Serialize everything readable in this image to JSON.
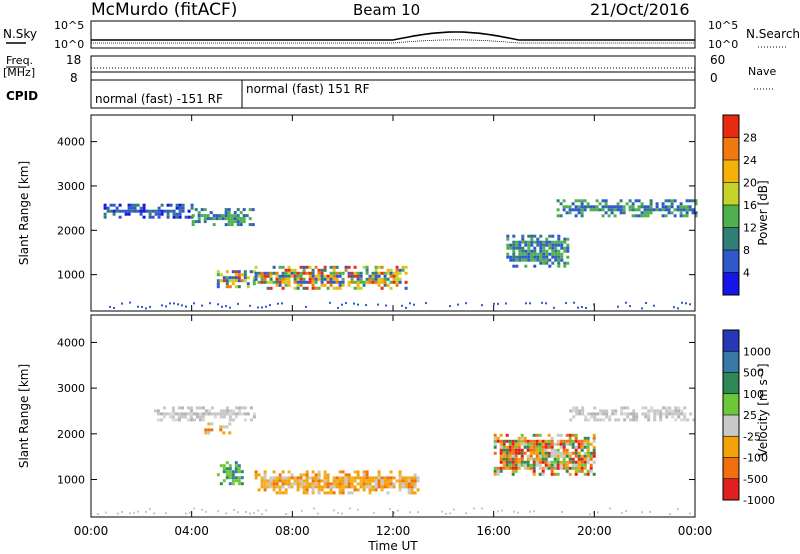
{
  "header": {
    "title_left": "McMurdo (fitACF)",
    "title_center": "Beam 10",
    "title_right": "21/Oct/2016"
  },
  "strip_labels": {
    "nsky": "N.Sky",
    "nsearch": "N.Search",
    "freq": "Freq.",
    "freq_unit": "[MHz]",
    "nave": "Nave",
    "cpid": "CPID",
    "log_high": "10^5",
    "log_low": "10^0",
    "freq_top": "18",
    "freq_bottom": "8",
    "nave_top": "60",
    "nave_bottom": "0"
  },
  "cpid_segments": [
    {
      "label": "normal (fast) -151 RF",
      "start_hour": 0,
      "end_hour": 6.0
    },
    {
      "label": "normal (fast) 151 RF",
      "start_hour": 6.0,
      "end_hour": 24
    }
  ],
  "chart_data": [
    {
      "type": "heatmap",
      "title": "",
      "xlabel": "",
      "ylabel": "Slant Range [km]",
      "xlim": [
        0,
        24
      ],
      "ylim": [
        180,
        4600
      ],
      "y_ticks": [
        "1000",
        "2000",
        "3000",
        "4000"
      ],
      "colorbar": {
        "label": "Power [dB]",
        "ticks": [
          "4",
          "8",
          "12",
          "16",
          "20",
          "24",
          "28"
        ],
        "colors": [
          "#1515e6",
          "#2f58c9",
          "#2f7f77",
          "#4fb04f",
          "#c4d42a",
          "#f5b10a",
          "#f07a10",
          "#e82a10"
        ]
      },
      "echo_regions_hours_km": [
        {
          "t": [
            0.5,
            4.0
          ],
          "r": [
            2300,
            2600
          ],
          "level": "low"
        },
        {
          "t": [
            4.0,
            6.5
          ],
          "r": [
            2150,
            2500
          ],
          "level": "mid"
        },
        {
          "t": [
            5.0,
            6.5
          ],
          "r": [
            700,
            1100
          ],
          "level": "high"
        },
        {
          "t": [
            6.5,
            12.5
          ],
          "r": [
            700,
            1200
          ],
          "level": "high"
        },
        {
          "t": [
            16.5,
            19.0
          ],
          "r": [
            1200,
            1900
          ],
          "level": "mid"
        },
        {
          "t": [
            18.5,
            24.0
          ],
          "r": [
            2300,
            2700
          ],
          "level": "mid"
        }
      ]
    },
    {
      "type": "heatmap",
      "title": "",
      "xlabel": "Time UT",
      "ylabel": "Slant Range [km]",
      "xlim": [
        0,
        24
      ],
      "ylim": [
        180,
        4600
      ],
      "x_ticks": [
        "00:00",
        "04:00",
        "08:00",
        "12:00",
        "16:00",
        "20:00",
        "00:00"
      ],
      "y_ticks": [
        "1000",
        "2000",
        "3000",
        "4000"
      ],
      "colorbar": {
        "label": "Velocity [m s⁻¹]",
        "ticks": [
          "1000",
          "500",
          "100",
          "25",
          "-25",
          "-100",
          "-500",
          "-1000"
        ],
        "colors": [
          "#2638b8",
          "#3a78a8",
          "#2e8a55",
          "#6cc83a",
          "#c8c8c8",
          "#f5a20a",
          "#f07010",
          "#e02020"
        ]
      },
      "echo_regions_hours_km": [
        {
          "t": [
            2.5,
            6.5
          ],
          "r": [
            2300,
            2600
          ],
          "level": "neutral"
        },
        {
          "t": [
            4.5,
            5.5
          ],
          "r": [
            2050,
            2250
          ],
          "level": "away"
        },
        {
          "t": [
            5.0,
            6.0
          ],
          "r": [
            900,
            1400
          ],
          "level": "toward"
        },
        {
          "t": [
            6.5,
            13.0
          ],
          "r": [
            700,
            1200
          ],
          "level": "away"
        },
        {
          "t": [
            16.0,
            20.0
          ],
          "r": [
            1100,
            2000
          ],
          "level": "mixed"
        },
        {
          "t": [
            19.0,
            24.0
          ],
          "r": [
            2300,
            2600
          ],
          "level": "neutral"
        }
      ]
    }
  ]
}
